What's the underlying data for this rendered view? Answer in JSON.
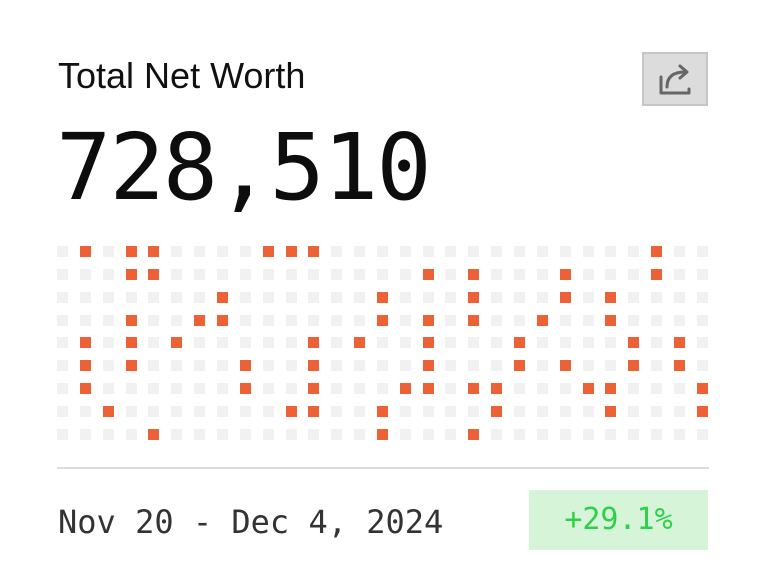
{
  "card": {
    "title": "Total Net Worth",
    "value": "728,510",
    "date_range": "Nov 20 - Dec 4, 2024",
    "change": "+29.1%"
  },
  "share_button": {
    "icon": "share-icon"
  },
  "activity_grid": {
    "columns": 29,
    "rows": 9,
    "active_color": "#ec6136",
    "inactive_color": "#f1f1f1",
    "active_cells": [
      [
        0,
        1
      ],
      [
        0,
        3
      ],
      [
        0,
        4
      ],
      [
        0,
        9
      ],
      [
        0,
        10
      ],
      [
        0,
        11
      ],
      [
        0,
        26
      ],
      [
        1,
        3
      ],
      [
        1,
        4
      ],
      [
        1,
        16
      ],
      [
        1,
        18
      ],
      [
        1,
        22
      ],
      [
        1,
        26
      ],
      [
        2,
        7
      ],
      [
        2,
        14
      ],
      [
        2,
        18
      ],
      [
        2,
        22
      ],
      [
        2,
        24
      ],
      [
        3,
        3
      ],
      [
        3,
        6
      ],
      [
        3,
        7
      ],
      [
        3,
        14
      ],
      [
        3,
        16
      ],
      [
        3,
        18
      ],
      [
        3,
        21
      ],
      [
        3,
        24
      ],
      [
        4,
        1
      ],
      [
        4,
        3
      ],
      [
        4,
        5
      ],
      [
        4,
        11
      ],
      [
        4,
        13
      ],
      [
        4,
        16
      ],
      [
        4,
        20
      ],
      [
        4,
        25
      ],
      [
        4,
        27
      ],
      [
        5,
        1
      ],
      [
        5,
        3
      ],
      [
        5,
        8
      ],
      [
        5,
        11
      ],
      [
        5,
        16
      ],
      [
        5,
        20
      ],
      [
        5,
        22
      ],
      [
        5,
        25
      ],
      [
        5,
        27
      ],
      [
        6,
        1
      ],
      [
        6,
        8
      ],
      [
        6,
        11
      ],
      [
        6,
        15
      ],
      [
        6,
        16
      ],
      [
        6,
        18
      ],
      [
        6,
        19
      ],
      [
        6,
        23
      ],
      [
        6,
        24
      ],
      [
        6,
        28
      ],
      [
        7,
        2
      ],
      [
        7,
        10
      ],
      [
        7,
        11
      ],
      [
        7,
        14
      ],
      [
        7,
        19
      ],
      [
        7,
        24
      ],
      [
        7,
        28
      ],
      [
        8,
        4
      ],
      [
        8,
        14
      ],
      [
        8,
        18
      ]
    ]
  },
  "colors": {
    "accent": "#ec6136",
    "positive_text": "#2fcf4c",
    "positive_bg": "#d6f5d8"
  }
}
